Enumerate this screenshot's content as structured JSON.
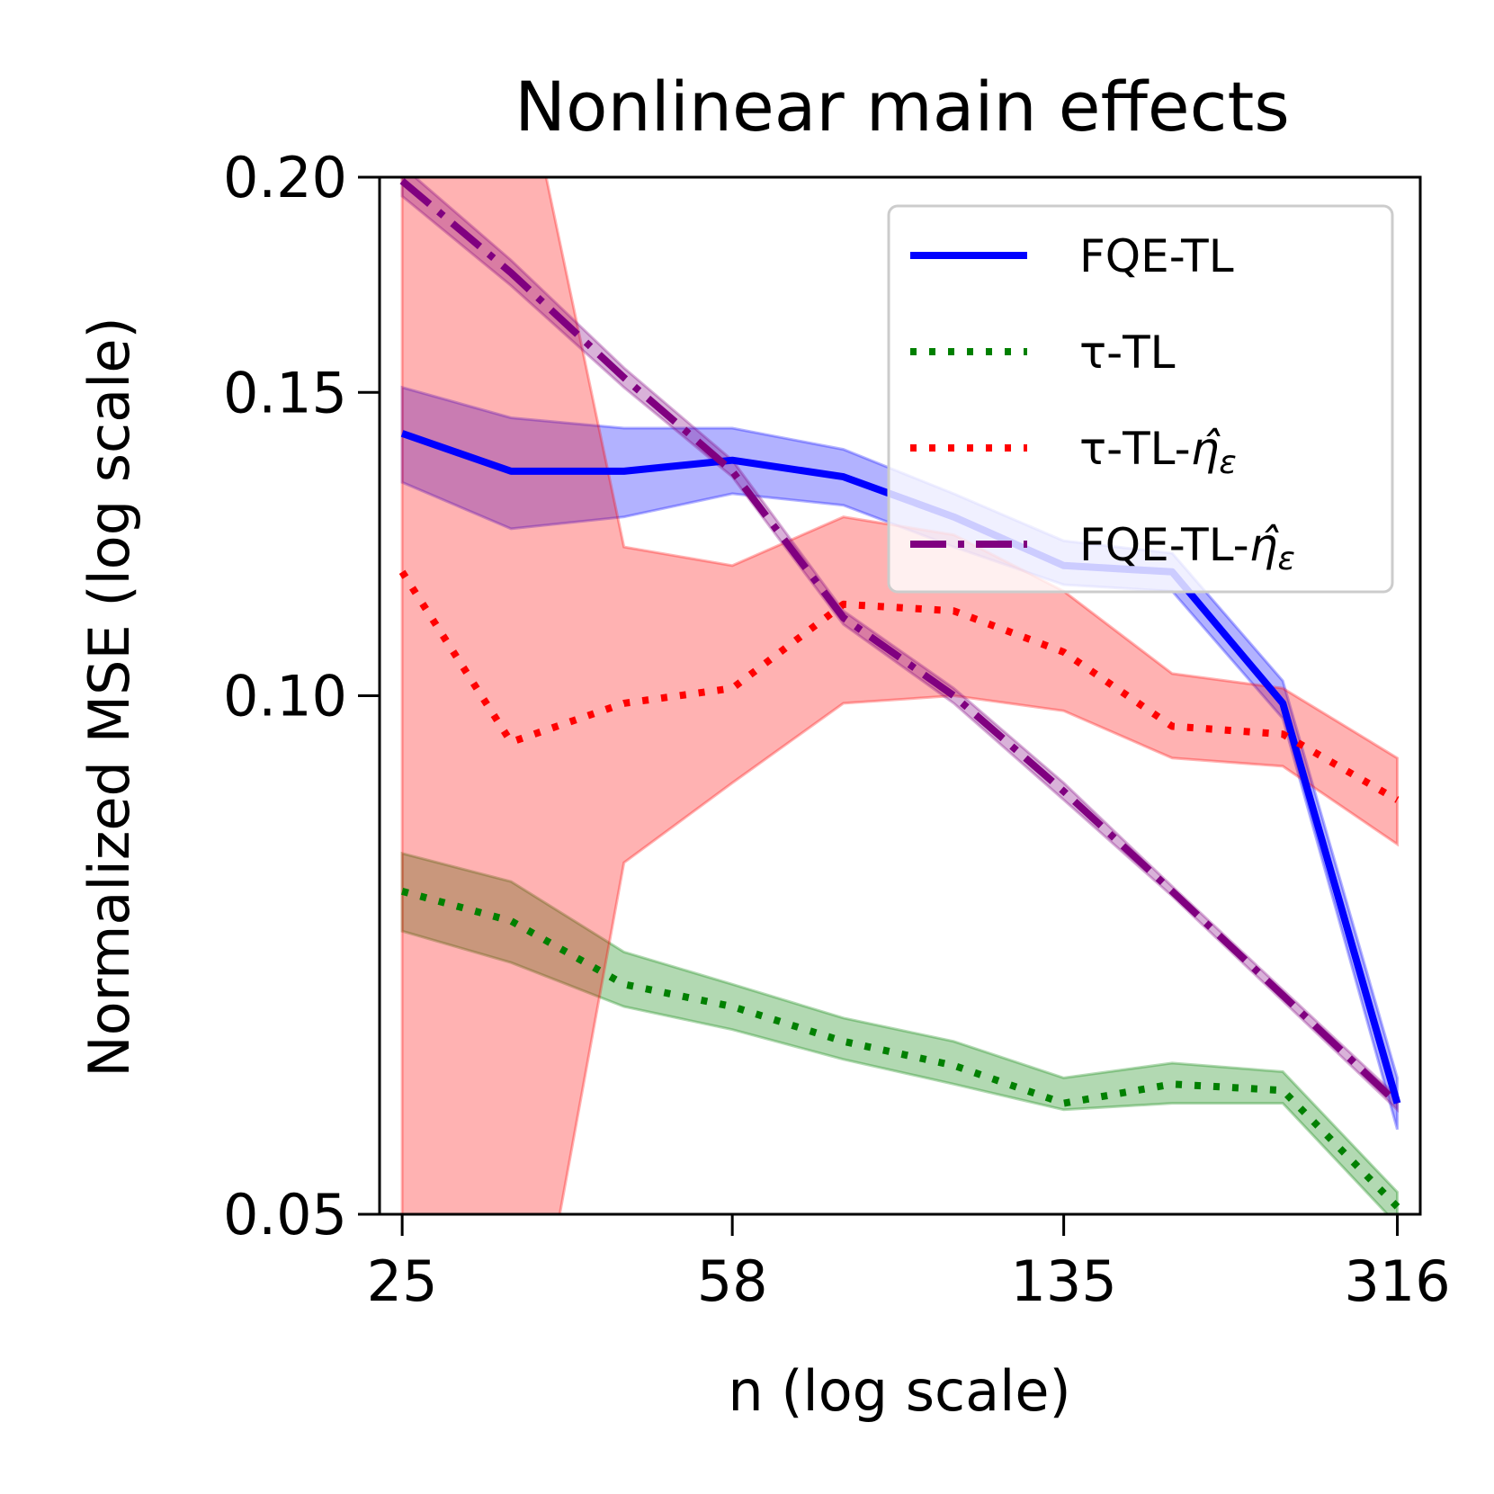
{
  "chart_data": {
    "type": "line",
    "title": "Nonlinear main effects",
    "xlabel": "n (log scale)",
    "ylabel": "Normalized MSE (log scale)",
    "xscale": "log",
    "yscale": "log",
    "xlim": [
      23.6,
      335
    ],
    "ylim": [
      0.05,
      0.2
    ],
    "xticks": [
      25,
      58,
      135,
      316
    ],
    "xtick_labels": [
      "25",
      "58",
      "135",
      "316"
    ],
    "yticks": [
      0.05,
      0.1,
      0.15,
      0.2
    ],
    "ytick_labels": [
      "0.05",
      "0.10",
      "0.15",
      "0.20"
    ],
    "grid": false,
    "legend_position": "top-right",
    "x": [
      25,
      33,
      44,
      58,
      77,
      102,
      135,
      178,
      236,
      316
    ],
    "series": [
      {
        "name": "FQE-TL",
        "color": "#0000ff",
        "style": "solid",
        "values": [
          0.142,
          0.135,
          0.135,
          0.137,
          0.134,
          0.127,
          0.119,
          0.118,
          0.099,
          0.058
        ],
        "lower": [
          0.133,
          0.125,
          0.127,
          0.131,
          0.129,
          0.122,
          0.116,
          0.115,
          0.097,
          0.056
        ],
        "upper": [
          0.151,
          0.145,
          0.143,
          0.143,
          0.139,
          0.131,
          0.123,
          0.121,
          0.102,
          0.06
        ]
      },
      {
        "name": "τ-TL",
        "color": "#008000",
        "style": "dotted",
        "values": [
          0.077,
          0.074,
          0.068,
          0.066,
          0.063,
          0.061,
          0.058,
          0.0595,
          0.059,
          0.0505
        ],
        "lower": [
          0.073,
          0.07,
          0.066,
          0.064,
          0.0615,
          0.0595,
          0.0575,
          0.058,
          0.058,
          0.0493
        ],
        "upper": [
          0.081,
          0.078,
          0.071,
          0.068,
          0.065,
          0.063,
          0.06,
          0.0612,
          0.0605,
          0.0515
        ]
      },
      {
        "name": "τ-TL-η̂ε",
        "color": "#ff0000",
        "style": "dotted",
        "values": [
          0.118,
          0.094,
          0.099,
          0.101,
          0.113,
          0.112,
          0.106,
          0.096,
          0.095,
          0.087
        ],
        "lower": [
          0.04,
          0.035,
          0.08,
          0.089,
          0.099,
          0.1,
          0.098,
          0.092,
          0.091,
          0.082
        ],
        "upper": [
          0.24,
          0.25,
          0.122,
          0.119,
          0.127,
          0.124,
          0.115,
          0.103,
          0.101,
          0.092
        ]
      },
      {
        "name": "FQE-TL-η̂ε",
        "color": "#800080",
        "style": "dashdot",
        "values": [
          0.199,
          0.176,
          0.153,
          0.135,
          0.111,
          0.1,
          0.088,
          0.077,
          0.067,
          0.058
        ],
        "lower": [
          0.195,
          0.173,
          0.151,
          0.134,
          0.11,
          0.099,
          0.087,
          0.0765,
          0.0665,
          0.0575
        ],
        "upper": [
          0.203,
          0.179,
          0.155,
          0.137,
          0.112,
          0.101,
          0.089,
          0.0775,
          0.0675,
          0.0585
        ]
      }
    ]
  }
}
